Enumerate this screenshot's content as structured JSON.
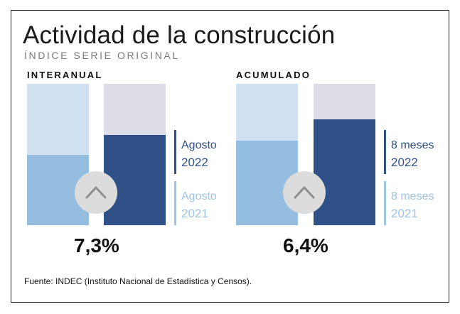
{
  "title": "Actividad de la construcción",
  "subtitle": "ÍNDICE SERIE ORIGINAL",
  "source": "Fuente: INDEC (Instituto Nacional de Estadística y Censos).",
  "colors": {
    "past_bg": "#cfe0f0",
    "past_fill": "#94bde0",
    "current_bg": "#dddde8",
    "current_fill": "#2f5187",
    "past_text": "#9cc4e4",
    "current_text": "#2f5187"
  },
  "chart_data": [
    {
      "type": "bar",
      "label": "INTERANUAL",
      "value_label": "7,3%",
      "categories": [
        "Agosto 2021",
        "Agosto 2022"
      ],
      "values": [
        0.5,
        0.64
      ],
      "legend": [
        {
          "period": "Agosto",
          "year": "2022"
        },
        {
          "period": "Agosto",
          "year": "2021"
        }
      ],
      "indicator": "chevron-up-icon"
    },
    {
      "type": "bar",
      "label": "ACUMULADO",
      "value_label": "6,4%",
      "categories": [
        "8 meses 2021",
        "8 meses 2022"
      ],
      "values": [
        0.6,
        0.75
      ],
      "legend": [
        {
          "period": "8 meses",
          "year": "2022"
        },
        {
          "period": "8 meses",
          "year": "2021"
        }
      ],
      "indicator": "chevron-up-icon"
    }
  ]
}
